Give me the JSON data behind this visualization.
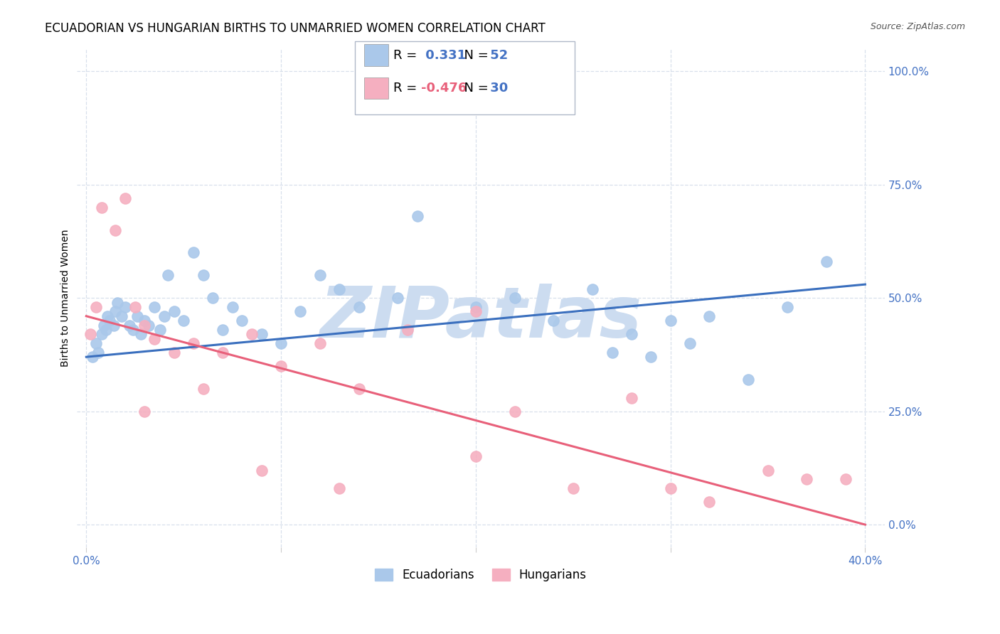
{
  "title": "ECUADORIAN VS HUNGARIAN BIRTHS TO UNMARRIED WOMEN CORRELATION CHART",
  "source": "Source: ZipAtlas.com",
  "ylabel": "Births to Unmarried Women",
  "right_ytick_labels": [
    "100.0%",
    "75.0%",
    "50.0%",
    "25.0%",
    "0.0%"
  ],
  "right_ytick_values": [
    100,
    75,
    50,
    25,
    0
  ],
  "xtick_labels": [
    "0.0%",
    "",
    "",
    "",
    "40.0%"
  ],
  "xtick_positions": [
    0,
    10,
    20,
    30,
    40
  ],
  "xlim": [
    -0.5,
    41
  ],
  "ylim": [
    -5,
    105
  ],
  "legend_entries": [
    {
      "label_r": "R =",
      "label_rv": " 0.331",
      "label_n": "  N =",
      "label_nv": " 52",
      "color": "#aac8ea"
    },
    {
      "label_r": "R =",
      "label_rv": "-0.476",
      "label_n": "  N =",
      "label_nv": " 30",
      "color": "#f5afc0"
    }
  ],
  "ecuadorians": {
    "name": "Ecuadorians",
    "color": "#aac8ea",
    "line_color": "#3a6fbe",
    "x": [
      0.3,
      0.5,
      0.6,
      0.8,
      0.9,
      1.0,
      1.1,
      1.2,
      1.4,
      1.5,
      1.6,
      1.8,
      2.0,
      2.2,
      2.4,
      2.6,
      2.8,
      3.0,
      3.2,
      3.5,
      3.8,
      4.0,
      4.2,
      4.5,
      5.0,
      5.5,
      6.0,
      6.5,
      7.0,
      7.5,
      8.0,
      9.0,
      10.0,
      11.0,
      12.0,
      13.0,
      14.0,
      16.0,
      17.0,
      20.0,
      22.0,
      24.0,
      26.0,
      27.0,
      28.0,
      29.0,
      30.0,
      31.0,
      32.0,
      34.0,
      36.0,
      38.0
    ],
    "y": [
      37,
      40,
      38,
      42,
      44,
      43,
      46,
      45,
      44,
      47,
      49,
      46,
      48,
      44,
      43,
      46,
      42,
      45,
      44,
      48,
      43,
      46,
      55,
      47,
      45,
      60,
      55,
      50,
      43,
      48,
      45,
      42,
      40,
      47,
      55,
      52,
      48,
      50,
      68,
      48,
      50,
      45,
      52,
      38,
      42,
      37,
      45,
      40,
      46,
      32,
      48,
      58
    ],
    "trend_x0": 0,
    "trend_x1": 40,
    "trend_y0": 37,
    "trend_y1": 53
  },
  "hungarians": {
    "name": "Hungarians",
    "color": "#f5afc0",
    "line_color": "#e8607a",
    "x": [
      0.2,
      0.5,
      0.8,
      1.5,
      2.0,
      2.5,
      3.0,
      3.5,
      4.5,
      5.5,
      7.0,
      8.5,
      10.0,
      12.0,
      14.0,
      16.5,
      20.0,
      22.0,
      25.0,
      28.0,
      30.0,
      32.0,
      35.0,
      37.0,
      39.0,
      20.0,
      13.0,
      6.0,
      3.0,
      9.0
    ],
    "y": [
      42,
      48,
      70,
      65,
      72,
      48,
      44,
      41,
      38,
      40,
      38,
      42,
      35,
      40,
      30,
      43,
      47,
      25,
      8,
      28,
      8,
      5,
      12,
      10,
      10,
      15,
      8,
      30,
      25,
      12
    ],
    "trend_x0": 0,
    "trend_x1": 40,
    "trend_y0": 46,
    "trend_y1": 0
  },
  "background_color": "#ffffff",
  "grid_color": "#d8e0ec",
  "title_fontsize": 12,
  "source_fontsize": 9,
  "axis_label_fontsize": 10,
  "tick_fontsize": 11,
  "legend_fontsize": 13,
  "marker_size": 120,
  "watermark_text": "ZIPatlas",
  "watermark_color": "#ccdcf0",
  "watermark_fontsize": 72
}
